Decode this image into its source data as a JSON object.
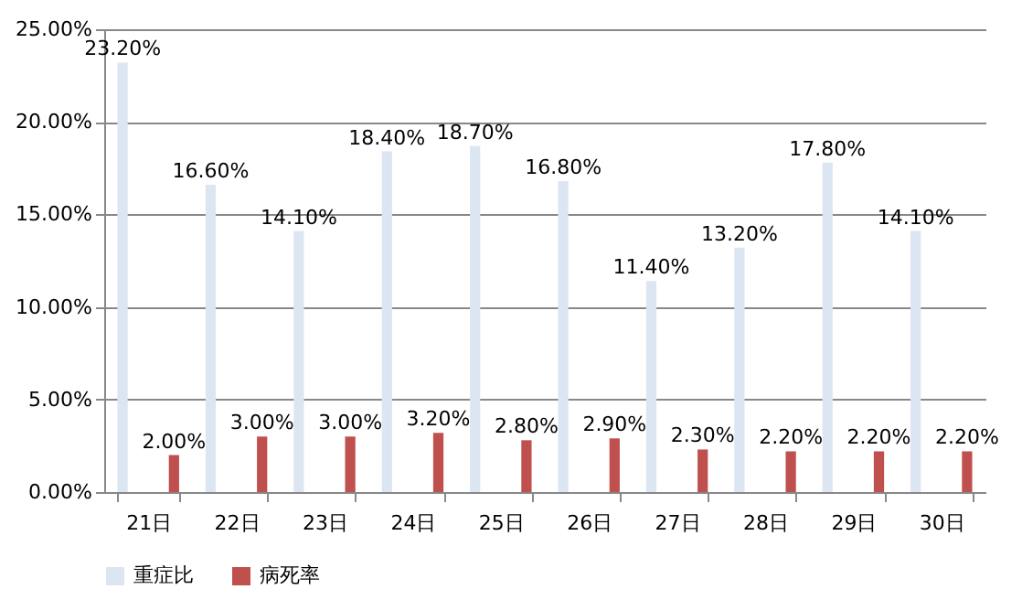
{
  "chart_data": {
    "type": "bar",
    "categories": [
      "21日",
      "22日",
      "23日",
      "24日",
      "25日",
      "26日",
      "27日",
      "28日",
      "29日",
      "30日"
    ],
    "series": [
      {
        "name": "重症比",
        "color": "#dce6f2",
        "values": [
          23.2,
          16.6,
          14.1,
          18.4,
          18.7,
          16.8,
          11.4,
          13.2,
          17.8,
          14.1
        ],
        "value_labels": [
          "23.20%",
          "16.60%",
          "14.10%",
          "18.40%",
          "18.70%",
          "16.80%",
          "11.40%",
          "13.20%",
          "17.80%",
          "14.10%"
        ]
      },
      {
        "name": "病死率",
        "color": "#c0504d",
        "values": [
          2.0,
          3.0,
          3.0,
          3.2,
          2.8,
          2.9,
          2.3,
          2.2,
          2.2,
          2.2
        ],
        "value_labels": [
          "2.00%",
          "3.00%",
          "3.00%",
          "3.20%",
          "2.80%",
          "2.90%",
          "2.30%",
          "2.20%",
          "2.20%",
          "2.20%"
        ]
      }
    ],
    "ylim": [
      0,
      25
    ],
    "yticks": [
      {
        "value": 0,
        "label": "0.00%"
      },
      {
        "value": 5,
        "label": "5.00%"
      },
      {
        "value": 10,
        "label": "10.00%"
      },
      {
        "value": 15,
        "label": "15.00%"
      },
      {
        "value": 20,
        "label": "20.00%"
      },
      {
        "value": 25,
        "label": "25.00%"
      }
    ],
    "grid": "y",
    "legend": "bottom"
  }
}
